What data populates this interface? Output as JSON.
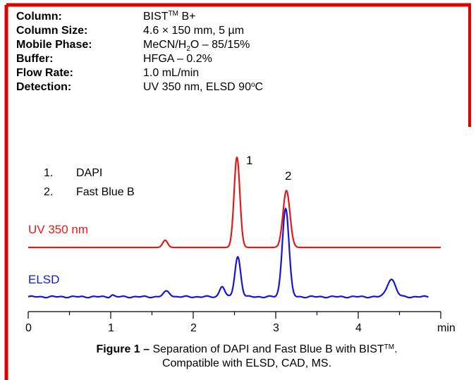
{
  "parameters": [
    {
      "label": "Column:",
      "value": "BIST",
      "sup": "TM",
      "suffix": " B+"
    },
    {
      "label": "Column Size:",
      "value": "4.6 × 150 mm, 5 µm"
    },
    {
      "label": "Mobile Phase:",
      "value": "MeCN/H",
      "sub": "2",
      "suffix": "O – 85/15%"
    },
    {
      "label": "Buffer:",
      "value": "HFGA – 0.2%"
    },
    {
      "label": "Flow Rate:",
      "value": "1.0 mL/min"
    },
    {
      "label": "Detection:",
      "value": "UV 350 nm, ELSD 90",
      "sup": "o",
      "suffix": "C"
    }
  ],
  "peak_list": [
    {
      "num": "1.",
      "name": "DAPI"
    },
    {
      "num": "2.",
      "name": "Fast Blue B"
    }
  ],
  "colors": {
    "border": "#e00000",
    "uv": "#e41a1a",
    "elsd": "#1515d6",
    "axis": "#000000"
  },
  "chart_data": {
    "type": "line",
    "xlabel": "min",
    "xlim": [
      0,
      5
    ],
    "xticks": [
      0,
      1,
      2,
      3,
      4
    ],
    "series": [
      {
        "name": "UV 350 nm",
        "baseline": 0,
        "noise": 0.0,
        "peaks": [
          {
            "t": 1.66,
            "h": 0.08,
            "w": 0.03
          },
          {
            "t": 2.53,
            "h": 1.0,
            "w": 0.035
          },
          {
            "t": 3.13,
            "h": 0.63,
            "w": 0.042
          }
        ]
      },
      {
        "name": "ELSD",
        "baseline": 0,
        "noise": 0.01,
        "peaks": [
          {
            "t": 1.02,
            "h": 0.02,
            "w": 0.02
          },
          {
            "t": 1.68,
            "h": 0.06,
            "w": 0.04
          },
          {
            "t": 2.35,
            "h": 0.12,
            "w": 0.03
          },
          {
            "t": 2.54,
            "h": 0.45,
            "w": 0.035
          },
          {
            "t": 3.12,
            "h": 1.0,
            "w": 0.04
          },
          {
            "t": 4.4,
            "h": 0.2,
            "w": 0.05
          }
        ]
      }
    ],
    "peak_labels": [
      {
        "label": "1",
        "t": 2.53
      },
      {
        "label": "2",
        "t": 3.13
      }
    ]
  },
  "caption": {
    "bold": "Figure 1 –",
    "text": " Separation of DAPI and Fast Blue B with BIST",
    "sup": "TM",
    "end": ".",
    "line2": "Compatible with ELSD, CAD, MS."
  }
}
